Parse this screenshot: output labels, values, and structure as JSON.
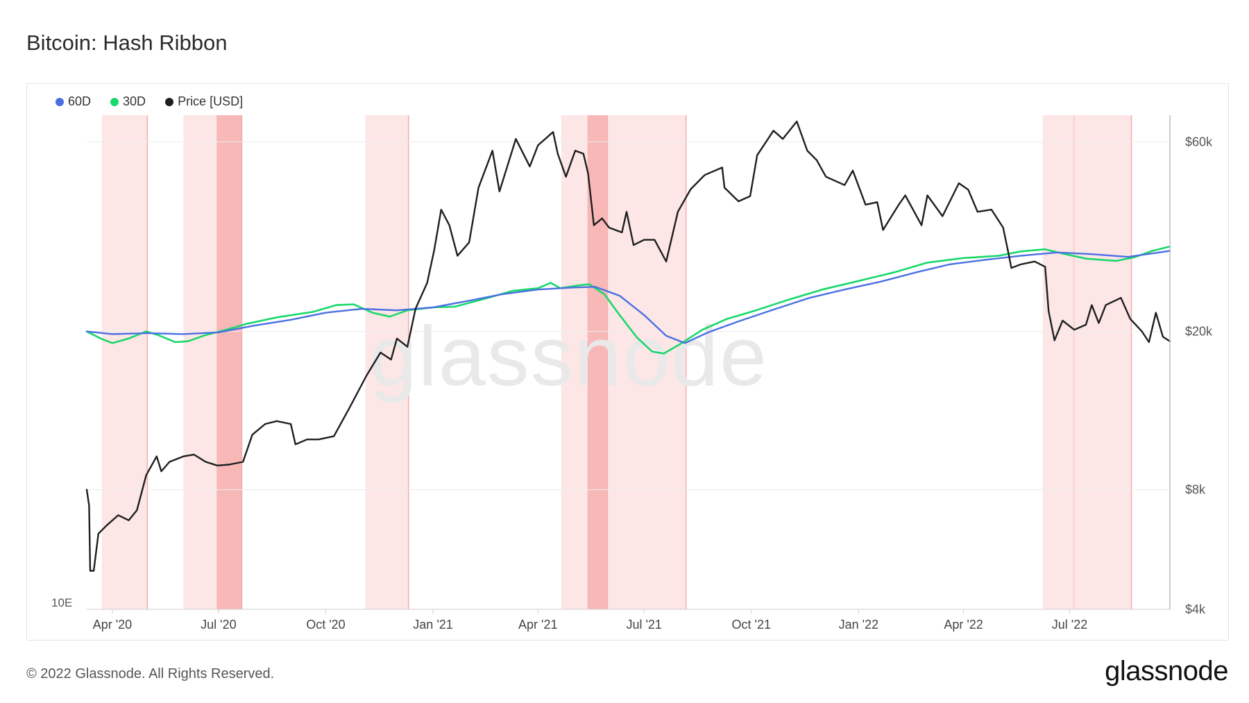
{
  "title": "Bitcoin: Hash Ribbon",
  "footer": {
    "copyright": "© 2022 Glassnode. All Rights Reserved.",
    "brand": "glassnode"
  },
  "watermark": "glassnode",
  "colors": {
    "line60": "#4a6fe3",
    "line30": "#18d86a",
    "price": "#1e1e1e",
    "band_light": "#fce6e6",
    "band_dark": "#f8b8b8",
    "band_edge": "#f3aeae"
  },
  "chart_data": {
    "type": "line",
    "title": "Bitcoin: Hash Ribbon",
    "left_axis_label": "10E",
    "x_ticks": [
      "Apr '20",
      "Jul '20",
      "Oct '20",
      "Jan '21",
      "Apr '21",
      "Jul '21",
      "Oct '21",
      "Jan '22",
      "Apr '22",
      "Jul '22"
    ],
    "x_tick_dates": [
      "2020-04-01",
      "2020-07-01",
      "2020-10-01",
      "2021-01-01",
      "2021-04-01",
      "2021-07-01",
      "2021-10-01",
      "2022-01-01",
      "2022-04-01",
      "2022-07-01"
    ],
    "x_range": [
      "2020-03-10",
      "2022-09-25"
    ],
    "y_scale": "log",
    "y_range": [
      4000,
      70000
    ],
    "y_ticks": [
      "$4k",
      "$8k",
      "$20k",
      "$60k"
    ],
    "y_tick_values": [
      4000,
      8000,
      20000,
      60000
    ],
    "legend": [
      "60D",
      "30D",
      "Price [USD]"
    ],
    "legend_placement": "top-left",
    "capitulation_bands": [
      {
        "start": "2020-03-23",
        "end": "2020-05-01",
        "style": "light"
      },
      {
        "start": "2020-06-01",
        "end": "2020-06-30",
        "style": "light"
      },
      {
        "start": "2020-06-30",
        "end": "2020-07-21",
        "style": "dark"
      },
      {
        "start": "2020-11-04",
        "end": "2020-12-11",
        "style": "light"
      },
      {
        "start": "2021-04-21",
        "end": "2021-05-14",
        "style": "light"
      },
      {
        "start": "2021-05-14",
        "end": "2021-05-31",
        "style": "dark"
      },
      {
        "start": "2021-05-31",
        "end": "2021-08-06",
        "style": "light"
      },
      {
        "start": "2022-06-08",
        "end": "2022-07-05",
        "style": "light"
      },
      {
        "start": "2022-07-05",
        "end": "2022-08-23",
        "style": "light"
      }
    ],
    "series": [
      {
        "name": "Price [USD]",
        "points": [
          [
            "2020-03-10",
            8000
          ],
          [
            "2020-03-12",
            7300
          ],
          [
            "2020-03-13",
            5000
          ],
          [
            "2020-03-16",
            5000
          ],
          [
            "2020-03-20",
            6200
          ],
          [
            "2020-03-27",
            6500
          ],
          [
            "2020-04-06",
            6900
          ],
          [
            "2020-04-15",
            6700
          ],
          [
            "2020-04-22",
            7100
          ],
          [
            "2020-04-30",
            8700
          ],
          [
            "2020-05-09",
            9700
          ],
          [
            "2020-05-13",
            8900
          ],
          [
            "2020-05-20",
            9400
          ],
          [
            "2020-06-01",
            9700
          ],
          [
            "2020-06-10",
            9800
          ],
          [
            "2020-06-20",
            9400
          ],
          [
            "2020-06-30",
            9200
          ],
          [
            "2020-07-10",
            9250
          ],
          [
            "2020-07-22",
            9400
          ],
          [
            "2020-07-30",
            11000
          ],
          [
            "2020-08-10",
            11700
          ],
          [
            "2020-08-20",
            11900
          ],
          [
            "2020-09-01",
            11700
          ],
          [
            "2020-09-05",
            10400
          ],
          [
            "2020-09-15",
            10700
          ],
          [
            "2020-09-25",
            10700
          ],
          [
            "2020-10-08",
            10900
          ],
          [
            "2020-10-21",
            12800
          ],
          [
            "2020-11-05",
            15500
          ],
          [
            "2020-11-17",
            17700
          ],
          [
            "2020-11-26",
            17000
          ],
          [
            "2020-12-01",
            19200
          ],
          [
            "2020-12-10",
            18300
          ],
          [
            "2020-12-17",
            22800
          ],
          [
            "2020-12-27",
            26500
          ],
          [
            "2021-01-02",
            32000
          ],
          [
            "2021-01-08",
            40500
          ],
          [
            "2021-01-15",
            37000
          ],
          [
            "2021-01-22",
            31000
          ],
          [
            "2021-02-01",
            33500
          ],
          [
            "2021-02-09",
            46000
          ],
          [
            "2021-02-21",
            57000
          ],
          [
            "2021-02-27",
            45000
          ],
          [
            "2021-03-13",
            61000
          ],
          [
            "2021-03-25",
            52000
          ],
          [
            "2021-04-01",
            58800
          ],
          [
            "2021-04-14",
            63500
          ],
          [
            "2021-04-18",
            56000
          ],
          [
            "2021-04-25",
            49000
          ],
          [
            "2021-05-03",
            57000
          ],
          [
            "2021-05-10",
            56000
          ],
          [
            "2021-05-14",
            50000
          ],
          [
            "2021-05-19",
            37000
          ],
          [
            "2021-05-26",
            38500
          ],
          [
            "2021-06-01",
            36500
          ],
          [
            "2021-06-12",
            35500
          ],
          [
            "2021-06-16",
            40000
          ],
          [
            "2021-06-22",
            33000
          ],
          [
            "2021-07-01",
            34000
          ],
          [
            "2021-07-10",
            34000
          ],
          [
            "2021-07-20",
            30000
          ],
          [
            "2021-07-30",
            40000
          ],
          [
            "2021-08-10",
            45600
          ],
          [
            "2021-08-22",
            49500
          ],
          [
            "2021-09-06",
            51700
          ],
          [
            "2021-09-08",
            46000
          ],
          [
            "2021-09-20",
            42500
          ],
          [
            "2021-09-30",
            43800
          ],
          [
            "2021-10-06",
            55500
          ],
          [
            "2021-10-20",
            64000
          ],
          [
            "2021-10-28",
            61000
          ],
          [
            "2021-11-09",
            67500
          ],
          [
            "2021-11-18",
            57000
          ],
          [
            "2021-11-26",
            54000
          ],
          [
            "2021-12-04",
            49000
          ],
          [
            "2021-12-20",
            46700
          ],
          [
            "2021-12-27",
            50800
          ],
          [
            "2022-01-07",
            41700
          ],
          [
            "2022-01-17",
            42300
          ],
          [
            "2022-01-22",
            36000
          ],
          [
            "2022-02-04",
            41500
          ],
          [
            "2022-02-10",
            44000
          ],
          [
            "2022-02-24",
            37000
          ],
          [
            "2022-03-01",
            44000
          ],
          [
            "2022-03-14",
            39000
          ],
          [
            "2022-03-28",
            47200
          ],
          [
            "2022-04-05",
            45500
          ],
          [
            "2022-04-13",
            40000
          ],
          [
            "2022-04-25",
            40500
          ],
          [
            "2022-05-05",
            36500
          ],
          [
            "2022-05-10",
            31000
          ],
          [
            "2022-05-12",
            28900
          ],
          [
            "2022-05-20",
            29500
          ],
          [
            "2022-06-01",
            30000
          ],
          [
            "2022-06-10",
            29100
          ],
          [
            "2022-06-13",
            22500
          ],
          [
            "2022-06-18",
            19000
          ],
          [
            "2022-06-25",
            21300
          ],
          [
            "2022-07-05",
            20200
          ],
          [
            "2022-07-15",
            20800
          ],
          [
            "2022-07-20",
            23300
          ],
          [
            "2022-07-26",
            21000
          ],
          [
            "2022-08-01",
            23300
          ],
          [
            "2022-08-14",
            24300
          ],
          [
            "2022-08-22",
            21500
          ],
          [
            "2022-09-01",
            20000
          ],
          [
            "2022-09-07",
            18800
          ],
          [
            "2022-09-13",
            22300
          ],
          [
            "2022-09-19",
            19400
          ],
          [
            "2022-09-25",
            18900
          ]
        ]
      },
      {
        "name": "30D",
        "points": [
          [
            "2020-03-10",
            20000
          ],
          [
            "2020-03-22",
            19200
          ],
          [
            "2020-04-01",
            18700
          ],
          [
            "2020-04-15",
            19200
          ],
          [
            "2020-04-30",
            20000
          ],
          [
            "2020-05-10",
            19600
          ],
          [
            "2020-05-25",
            18800
          ],
          [
            "2020-06-05",
            18900
          ],
          [
            "2020-06-20",
            19600
          ],
          [
            "2020-07-05",
            20100
          ],
          [
            "2020-07-25",
            20900
          ],
          [
            "2020-08-20",
            21700
          ],
          [
            "2020-09-20",
            22400
          ],
          [
            "2020-10-10",
            23300
          ],
          [
            "2020-10-25",
            23400
          ],
          [
            "2020-11-10",
            22300
          ],
          [
            "2020-11-25",
            21800
          ],
          [
            "2020-12-10",
            22600
          ],
          [
            "2021-01-01",
            23000
          ],
          [
            "2021-01-20",
            23100
          ],
          [
            "2021-02-15",
            24200
          ],
          [
            "2021-03-10",
            25300
          ],
          [
            "2021-04-01",
            25700
          ],
          [
            "2021-04-12",
            26500
          ],
          [
            "2021-04-20",
            25700
          ],
          [
            "2021-05-05",
            26100
          ],
          [
            "2021-05-15",
            26300
          ],
          [
            "2021-05-28",
            24800
          ],
          [
            "2021-06-10",
            22000
          ],
          [
            "2021-06-25",
            19300
          ],
          [
            "2021-07-08",
            17800
          ],
          [
            "2021-07-18",
            17600
          ],
          [
            "2021-08-01",
            18600
          ],
          [
            "2021-08-20",
            20200
          ],
          [
            "2021-09-10",
            21500
          ],
          [
            "2021-10-05",
            22600
          ],
          [
            "2021-11-01",
            24000
          ],
          [
            "2021-12-01",
            25500
          ],
          [
            "2022-01-01",
            26800
          ],
          [
            "2022-02-01",
            28200
          ],
          [
            "2022-03-01",
            29800
          ],
          [
            "2022-04-01",
            30600
          ],
          [
            "2022-05-01",
            31000
          ],
          [
            "2022-05-20",
            31800
          ],
          [
            "2022-06-10",
            32200
          ],
          [
            "2022-06-25",
            31400
          ],
          [
            "2022-07-15",
            30500
          ],
          [
            "2022-08-10",
            30100
          ],
          [
            "2022-08-25",
            30700
          ],
          [
            "2022-09-10",
            31900
          ],
          [
            "2022-09-25",
            32700
          ]
        ]
      },
      {
        "name": "60D",
        "points": [
          [
            "2020-03-10",
            20000
          ],
          [
            "2020-04-01",
            19700
          ],
          [
            "2020-05-01",
            19800
          ],
          [
            "2020-06-01",
            19700
          ],
          [
            "2020-07-01",
            19900
          ],
          [
            "2020-08-01",
            20700
          ],
          [
            "2020-09-01",
            21400
          ],
          [
            "2020-10-01",
            22300
          ],
          [
            "2020-11-01",
            22800
          ],
          [
            "2020-12-01",
            22600
          ],
          [
            "2021-01-01",
            23000
          ],
          [
            "2021-02-01",
            23900
          ],
          [
            "2021-03-01",
            24800
          ],
          [
            "2021-04-01",
            25500
          ],
          [
            "2021-05-01",
            25800
          ],
          [
            "2021-05-20",
            25900
          ],
          [
            "2021-06-10",
            24600
          ],
          [
            "2021-07-01",
            22000
          ],
          [
            "2021-07-20",
            19500
          ],
          [
            "2021-08-05",
            18700
          ],
          [
            "2021-08-25",
            19900
          ],
          [
            "2021-09-20",
            21200
          ],
          [
            "2021-10-20",
            22700
          ],
          [
            "2021-11-20",
            24300
          ],
          [
            "2021-12-20",
            25500
          ],
          [
            "2022-01-20",
            26700
          ],
          [
            "2022-02-20",
            28200
          ],
          [
            "2022-03-20",
            29500
          ],
          [
            "2022-04-20",
            30300
          ],
          [
            "2022-05-20",
            31000
          ],
          [
            "2022-06-20",
            31600
          ],
          [
            "2022-07-20",
            31300
          ],
          [
            "2022-08-20",
            30800
          ],
          [
            "2022-09-25",
            31900
          ]
        ]
      }
    ]
  }
}
